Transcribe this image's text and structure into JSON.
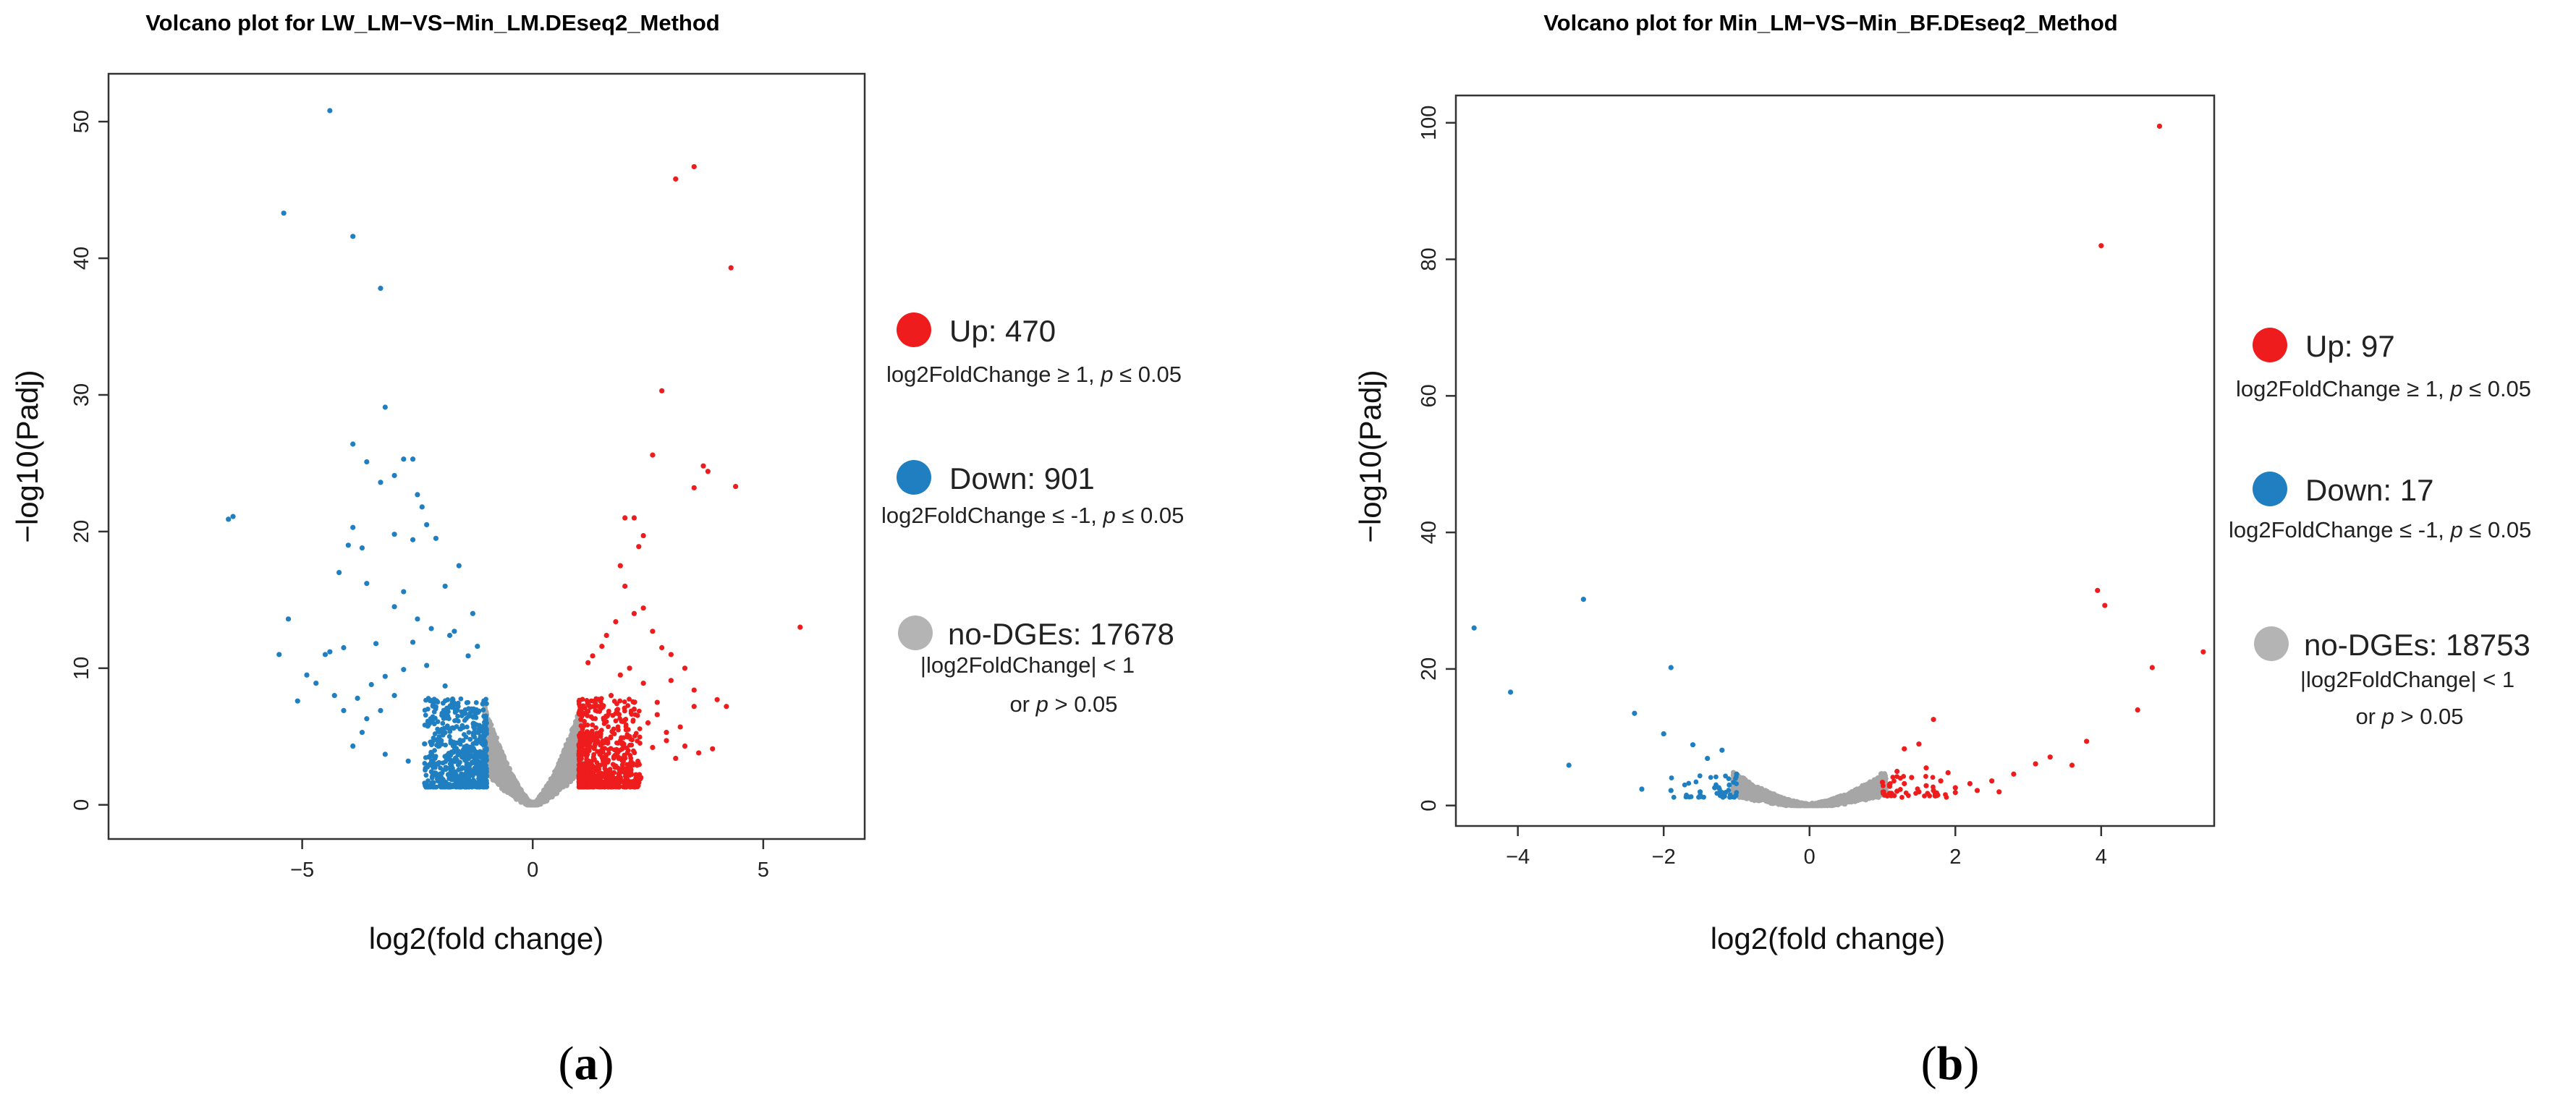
{
  "chart_data": [
    {
      "type": "scatter",
      "title": "Volcano plot for LW_LM−VS−Min_LM.DEseq2_Method",
      "xlabel": "log2(fold change)",
      "ylabel": "−log10(Padj)",
      "xlim": [
        -9.2,
        7.2
      ],
      "ylim": [
        -2.5,
        53.5
      ],
      "xticks": [
        -5,
        0,
        5
      ],
      "yticks": [
        0,
        10,
        20,
        30,
        40,
        50
      ],
      "xtick_labels": [
        "−5",
        "0",
        "5"
      ],
      "ytick_labels": [
        "0",
        "10",
        "20",
        "30",
        "40",
        "50"
      ],
      "panel_label": {
        "open": "(",
        "letter": "a",
        "close": ")"
      },
      "series": [
        {
          "name": "Up",
          "color": "#ee1c1c",
          "count": 470,
          "label": "Up: 470",
          "condition": {
            "pre": "log2FoldChange ≥ 1, ",
            "p": "p",
            "post": " ≤ 0.05"
          },
          "points": [
            [
              3.5,
              46.7
            ],
            [
              3.1,
              45.8
            ],
            [
              4.3,
              39.3
            ],
            [
              2.8,
              30.3
            ],
            [
              5.8,
              13
            ],
            [
              3.7,
              24.8
            ],
            [
              3.8,
              24.4
            ],
            [
              3.5,
              23.2
            ],
            [
              4.4,
              23.3
            ],
            [
              2.6,
              25.6
            ],
            [
              2.0,
              21.0
            ],
            [
              2.2,
              21.0
            ],
            [
              2.4,
              19.7
            ],
            [
              1.9,
              17.5
            ],
            [
              2.3,
              18.9
            ],
            [
              2.0,
              16.0
            ],
            [
              2.4,
              14.4
            ],
            [
              2.2,
              14.0
            ],
            [
              2.6,
              12.7
            ],
            [
              2.8,
              11.5
            ],
            [
              3.0,
              11.0
            ],
            [
              3.3,
              10.0
            ],
            [
              3.0,
              9.1
            ],
            [
              3.5,
              8.4
            ],
            [
              4.0,
              7.7
            ],
            [
              4.2,
              7.2
            ],
            [
              3.5,
              7.2
            ],
            [
              2.7,
              6.6
            ],
            [
              3.2,
              5.7
            ],
            [
              3.9,
              4.1
            ],
            [
              3.6,
              3.8
            ],
            [
              2.9,
              4.7
            ],
            [
              1.8,
              13.4
            ],
            [
              1.6,
              12.4
            ],
            [
              1.5,
              11.6
            ],
            [
              1.3,
              10.9
            ],
            [
              1.2,
              10.4
            ],
            [
              2.1,
              10.0
            ],
            [
              2.4,
              8.9
            ],
            [
              1.9,
              9.5
            ],
            [
              2.7,
              7.5
            ],
            [
              2.9,
              5.3
            ],
            [
              1.7,
              8.0
            ],
            [
              2.2,
              7.0
            ],
            [
              2.5,
              6.0
            ],
            [
              2.6,
              4.2
            ],
            [
              2.3,
              3.0
            ],
            [
              3.3,
              4.3
            ],
            [
              3.1,
              3.4
            ],
            [
              2.1,
              5.0
            ]
          ]
        },
        {
          "name": "Down",
          "color": "#1f7fc1",
          "count": 901,
          "label": "Down: 901",
          "condition": {
            "pre": "log2FoldChange ≤ -1, ",
            "p": "p",
            "post": " ≤ 0.05"
          },
          "points": [
            [
              -4.4,
              50.8
            ],
            [
              -5.4,
              43.3
            ],
            [
              -3.9,
              41.6
            ],
            [
              -3.3,
              37.8
            ],
            [
              -3.2,
              29.1
            ],
            [
              -6.6,
              20.9
            ],
            [
              -6.5,
              21.1
            ],
            [
              -3.9,
              26.4
            ],
            [
              -3.6,
              25.1
            ],
            [
              -2.8,
              25.3
            ],
            [
              -3.0,
              24.1
            ],
            [
              -2.6,
              25.3
            ],
            [
              -3.3,
              23.6
            ],
            [
              -2.5,
              22.7
            ],
            [
              -2.4,
              21.8
            ],
            [
              -2.3,
              20.5
            ],
            [
              -3.9,
              20.3
            ],
            [
              -3.0,
              19.8
            ],
            [
              -2.6,
              19.4
            ],
            [
              -2.1,
              19.5
            ],
            [
              -4.0,
              19.0
            ],
            [
              -3.7,
              18.8
            ],
            [
              -4.2,
              17.0
            ],
            [
              -3.6,
              16.2
            ],
            [
              -1.6,
              17.5
            ],
            [
              -1.9,
              16.0
            ],
            [
              -2.8,
              15.6
            ],
            [
              -5.3,
              13.6
            ],
            [
              -3.0,
              14.5
            ],
            [
              -1.3,
              14.0
            ],
            [
              -2.5,
              13.6
            ],
            [
              -1.7,
              12.7
            ],
            [
              -4.4,
              11.2
            ],
            [
              -4.5,
              11.0
            ],
            [
              -5.5,
              11.0
            ],
            [
              -4.1,
              11.5
            ],
            [
              -4.9,
              9.5
            ],
            [
              -4.7,
              8.9
            ],
            [
              -5.1,
              7.6
            ],
            [
              -4.3,
              8.0
            ],
            [
              -3.5,
              8.8
            ],
            [
              -3.8,
              7.8
            ],
            [
              -4.1,
              6.9
            ],
            [
              -3.6,
              6.3
            ],
            [
              -3.2,
              9.4
            ],
            [
              -3.4,
              11.8
            ],
            [
              -2.6,
              11.9
            ],
            [
              -2.2,
              12.9
            ],
            [
              -1.8,
              12.4
            ],
            [
              -1.4,
              10.9
            ],
            [
              -1.2,
              11.6
            ],
            [
              -2.3,
              10.2
            ],
            [
              -2.8,
              9.9
            ],
            [
              -1.9,
              8.7
            ],
            [
              -3.0,
              8.0
            ],
            [
              -3.3,
              6.9
            ],
            [
              -3.7,
              5.3
            ],
            [
              -3.9,
              4.3
            ],
            [
              -3.2,
              3.7
            ],
            [
              -2.7,
              3.2
            ]
          ]
        },
        {
          "name": "no-DGEs",
          "color": "#a6a6a6",
          "count": 17678,
          "label": "no-DGEs: 17678",
          "condition_lines": [
            "|log2FoldChange| < 1",
            {
              "pre": "or ",
              "p": "p",
              "post": " > 0.05"
            }
          ]
        }
      ]
    },
    {
      "type": "scatter",
      "title": "Volcano plot for Min_LM−VS−Min_BF.DEseq2_Method",
      "xlabel": "log2(fold change)",
      "ylabel": "−log10(Padj)",
      "xlim": [
        -4.85,
        5.55
      ],
      "ylim": [
        -3,
        104
      ],
      "xticks": [
        -4,
        -2,
        0,
        2,
        4
      ],
      "yticks": [
        0,
        20,
        40,
        60,
        80,
        100
      ],
      "xtick_labels": [
        "−4",
        "−2",
        "0",
        "2",
        "4"
      ],
      "ytick_labels": [
        "0",
        "20",
        "40",
        "60",
        "80",
        "100"
      ],
      "panel_label": {
        "open": "(",
        "letter": "b",
        "close": ")"
      },
      "series": [
        {
          "name": "Up",
          "color": "#ee1c1c",
          "count": 97,
          "label": "Up: 97",
          "condition": {
            "pre": "log2FoldChange ≥ 1, ",
            "p": "p",
            "post": " ≤ 0.05"
          },
          "points": [
            [
              4.8,
              99.5
            ],
            [
              4.0,
              82
            ],
            [
              3.95,
              31.5
            ],
            [
              4.05,
              29.3
            ],
            [
              5.4,
              22.5
            ],
            [
              4.7,
              20.2
            ],
            [
              4.5,
              14.0
            ],
            [
              3.8,
              9.4
            ],
            [
              3.3,
              7.1
            ],
            [
              3.1,
              6.1
            ],
            [
              3.6,
              5.9
            ],
            [
              2.8,
              4.6
            ],
            [
              2.5,
              3.6
            ],
            [
              2.2,
              3.2
            ],
            [
              2.0,
              2.6
            ],
            [
              1.7,
              12.6
            ],
            [
              1.5,
              9.0
            ],
            [
              1.3,
              8.3
            ],
            [
              1.6,
              5.5
            ],
            [
              1.9,
              4.8
            ],
            [
              1.2,
              5.0
            ],
            [
              1.8,
              3.6
            ],
            [
              1.4,
              4.1
            ],
            [
              2.3,
              2.2
            ],
            [
              2.6,
              2.0
            ],
            [
              1.1,
              2.8
            ],
            [
              1.6,
              2.9
            ],
            [
              1.3,
              3.2
            ],
            [
              2.0,
              1.9
            ],
            [
              1.5,
              2.0
            ],
            [
              1.2,
              2.1
            ],
            [
              1.7,
              2.2
            ],
            [
              1.0,
              3.4
            ],
            [
              1.1,
              1.8
            ]
          ]
        },
        {
          "name": "Down",
          "color": "#1f7fc1",
          "count": 17,
          "label": "Down: 17",
          "condition": {
            "pre": "log2FoldChange ≤ -1, ",
            "p": "p",
            "post": " ≤ 0.05"
          },
          "points": [
            [
              -4.6,
              26
            ],
            [
              -3.1,
              30.2
            ],
            [
              -4.1,
              16.6
            ],
            [
              -1.9,
              20.2
            ],
            [
              -2.4,
              13.5
            ],
            [
              -1.6,
              8.9
            ],
            [
              -1.2,
              8.1
            ],
            [
              -1.4,
              6.9
            ],
            [
              -2.0,
              10.5
            ],
            [
              -3.3,
              5.9
            ],
            [
              -2.3,
              2.4
            ],
            [
              -1.9,
              2.2
            ],
            [
              -1.1,
              3.0
            ],
            [
              -1.3,
              2.6
            ],
            [
              -1.5,
              2.0
            ],
            [
              -1.0,
              4.6
            ],
            [
              -1.2,
              1.9
            ]
          ]
        },
        {
          "name": "no-DGEs",
          "color": "#a6a6a6",
          "count": 18753,
          "label": "no-DGEs: 18753",
          "condition_lines": [
            "|log2FoldChange| < 1",
            {
              "pre": "or ",
              "p": "p",
              "post": " > 0.05"
            }
          ]
        }
      ]
    }
  ]
}
